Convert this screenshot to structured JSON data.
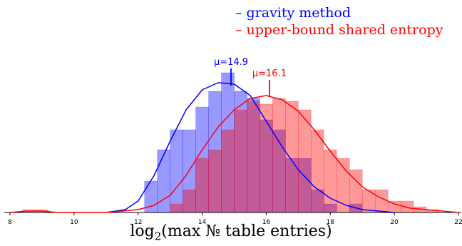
{
  "chart_data": {
    "type": "histogram",
    "xlabel_prefix": "log",
    "xlabel_base": "2",
    "xlabel_rest": "(max № table entries)",
    "xlim": [
      8,
      22
    ],
    "ylim": [
      0,
      1
    ],
    "x_ticks": [
      8,
      10,
      12,
      14,
      16,
      18,
      20,
      22
    ],
    "bin_width": 0.4,
    "legend_position": "top-right",
    "series": [
      {
        "name": "gravity method",
        "color": "#0000ff",
        "mean": 14.9,
        "mean_label": "μ=14.9",
        "bin_starts": [
          12.2,
          12.6,
          13.0,
          13.4,
          13.8,
          14.2,
          14.6,
          15.0,
          15.4,
          15.8,
          16.2,
          16.6,
          17.0,
          17.4,
          17.8,
          18.6
        ],
        "bin_heights": [
          0.22,
          0.44,
          0.58,
          0.58,
          0.74,
          0.85,
          0.98,
          0.85,
          0.8,
          0.65,
          0.58,
          0.38,
          0.38,
          0.16,
          0.06,
          0.06
        ],
        "curve_x": [
          11.0,
          11.6,
          12.0,
          12.5,
          13.0,
          13.5,
          14.0,
          14.5,
          15.0,
          15.5,
          16.0,
          16.5,
          17.0,
          17.5,
          18.0,
          18.5,
          19.0,
          19.5,
          20.0
        ],
        "curve_y": [
          0.0,
          0.02,
          0.08,
          0.26,
          0.5,
          0.72,
          0.86,
          0.91,
          0.9,
          0.82,
          0.64,
          0.46,
          0.3,
          0.18,
          0.1,
          0.05,
          0.02,
          0.01,
          0.0
        ]
      },
      {
        "name": "upper-bound shared entropy",
        "color": "#ff0000",
        "mean": 16.1,
        "mean_label": "μ=16.1",
        "bin_starts": [
          8.4,
          8.8,
          13.0,
          13.4,
          13.8,
          14.2,
          14.6,
          15.0,
          15.4,
          15.8,
          16.2,
          16.6,
          17.0,
          17.4,
          17.8,
          18.2,
          18.6,
          19.0,
          19.4,
          19.8,
          20.2,
          20.6,
          21.0
        ],
        "bin_heights": [
          0.02,
          0.02,
          0.06,
          0.16,
          0.38,
          0.44,
          0.58,
          0.72,
          0.78,
          0.76,
          0.8,
          0.78,
          0.72,
          0.58,
          0.44,
          0.38,
          0.3,
          0.16,
          0.16,
          0.08,
          0.08,
          0.04,
          0.02
        ],
        "curve_x": [
          8.0,
          8.5,
          9.0,
          9.5,
          10.0,
          10.5,
          11.0,
          11.5,
          12.0,
          12.5,
          13.0,
          13.5,
          14.0,
          14.5,
          15.0,
          15.5,
          16.0,
          16.5,
          17.0,
          17.5,
          18.0,
          18.5,
          19.0,
          19.5,
          20.0,
          20.5,
          21.0,
          21.5,
          22.0
        ],
        "curve_y": [
          0.0,
          0.01,
          0.01,
          0.0,
          0.0,
          0.0,
          0.0,
          0.01,
          0.02,
          0.05,
          0.12,
          0.26,
          0.44,
          0.6,
          0.72,
          0.8,
          0.82,
          0.79,
          0.71,
          0.58,
          0.43,
          0.29,
          0.18,
          0.11,
          0.06,
          0.03,
          0.02,
          0.01,
          0.0
        ]
      }
    ]
  }
}
